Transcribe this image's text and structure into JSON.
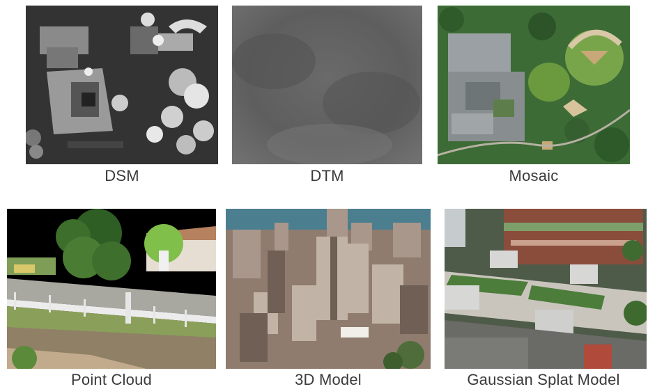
{
  "products": [
    {
      "label": "DSM"
    },
    {
      "label": "DTM"
    },
    {
      "label": "Mosaic"
    },
    {
      "label": "Point Cloud"
    },
    {
      "label": "3D Model"
    },
    {
      "label": "Gaussian Splat Model"
    }
  ]
}
